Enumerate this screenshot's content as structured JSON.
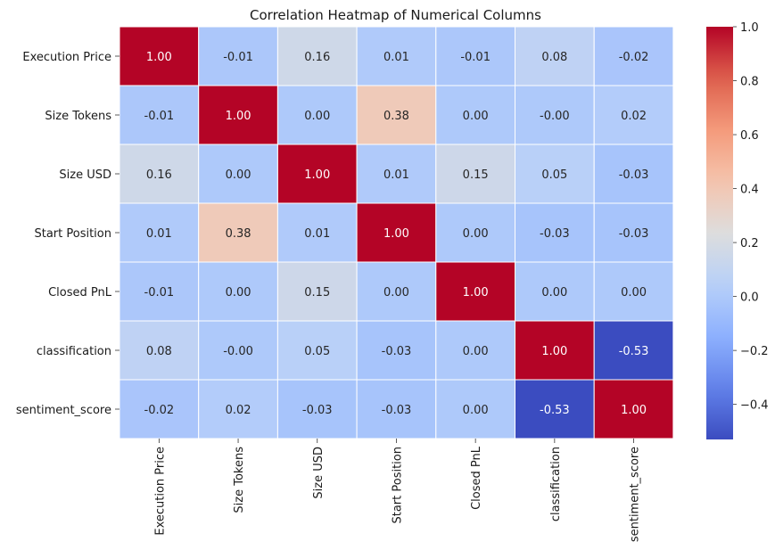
{
  "chart_data": {
    "type": "heatmap",
    "title": "Correlation Heatmap of Numerical Columns",
    "rows": [
      "Execution Price",
      "Size Tokens",
      "Size USD",
      "Start Position",
      "Closed PnL",
      "classification",
      "sentiment_score"
    ],
    "columns": [
      "Execution Price",
      "Size Tokens",
      "Size USD",
      "Start Position",
      "Closed PnL",
      "classification",
      "sentiment_score"
    ],
    "values": [
      [
        1.0,
        -0.01,
        0.16,
        0.01,
        -0.01,
        0.08,
        -0.02
      ],
      [
        -0.01,
        1.0,
        0.0,
        0.38,
        0.0,
        -0.0,
        0.02
      ],
      [
        0.16,
        0.0,
        1.0,
        0.01,
        0.15,
        0.05,
        -0.03
      ],
      [
        0.01,
        0.38,
        0.01,
        1.0,
        0.0,
        -0.03,
        -0.03
      ],
      [
        -0.01,
        0.0,
        0.15,
        0.0,
        1.0,
        0.0,
        0.0
      ],
      [
        0.08,
        -0.0,
        0.05,
        -0.03,
        0.0,
        1.0,
        -0.53
      ],
      [
        -0.02,
        0.02,
        -0.03,
        -0.03,
        0.0,
        -0.53,
        1.0
      ]
    ],
    "labels": [
      [
        "1.00",
        "-0.01",
        "0.16",
        "0.01",
        "-0.01",
        "0.08",
        "-0.02"
      ],
      [
        "-0.01",
        "1.00",
        "0.00",
        "0.38",
        "0.00",
        "-0.00",
        "0.02"
      ],
      [
        "0.16",
        "0.00",
        "1.00",
        "0.01",
        "0.15",
        "0.05",
        "-0.03"
      ],
      [
        "0.01",
        "0.38",
        "0.01",
        "1.00",
        "0.00",
        "-0.03",
        "-0.03"
      ],
      [
        "-0.01",
        "0.00",
        "0.15",
        "0.00",
        "1.00",
        "0.00",
        "0.00"
      ],
      [
        "0.08",
        "-0.00",
        "0.05",
        "-0.03",
        "0.00",
        "1.00",
        "-0.53"
      ],
      [
        "-0.02",
        "0.02",
        "-0.03",
        "-0.03",
        "0.00",
        "-0.53",
        "1.00"
      ]
    ],
    "colormap": "coolwarm",
    "colorbar": {
      "range": [
        -0.53,
        1.0
      ],
      "ticks": [
        1.0,
        0.8,
        0.6,
        0.4,
        0.2,
        0.0,
        -0.2,
        -0.4
      ],
      "tick_labels": [
        "1.0",
        "0.8",
        "0.6",
        "0.4",
        "0.2",
        "0.0",
        "−0.2",
        "−0.4"
      ],
      "placement": "right"
    },
    "cell_border_color": "#ffffff"
  }
}
